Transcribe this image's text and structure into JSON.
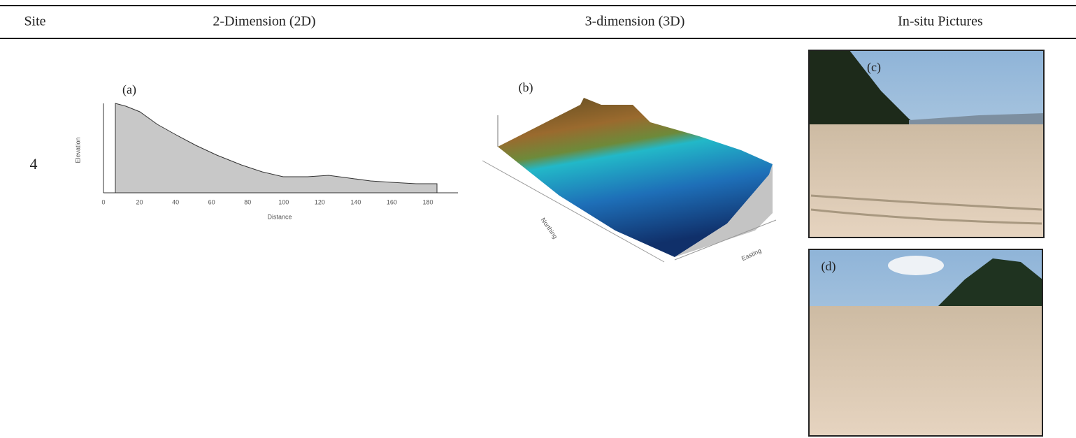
{
  "table": {
    "header": [
      "Site",
      "2-Dimension (2D)",
      "3-dimension (3D)",
      "In-situ Pictures"
    ],
    "rows": [
      {
        "site": "4",
        "profile_2d": {
          "label": "(a)",
          "x_axis_label": "Distance",
          "y_axis_label": "Elevation",
          "x_ticks": [
            "0",
            "20",
            "40",
            "60",
            "80",
            "100",
            "120",
            "140",
            "160",
            "180"
          ]
        },
        "surface_3d": {
          "label": "(b)",
          "x_axis_label": "Easting",
          "y_axis_label": "Northing"
        },
        "pictures": [
          {
            "label": "(c)"
          },
          {
            "label": "(d)"
          }
        ]
      }
    ]
  }
}
